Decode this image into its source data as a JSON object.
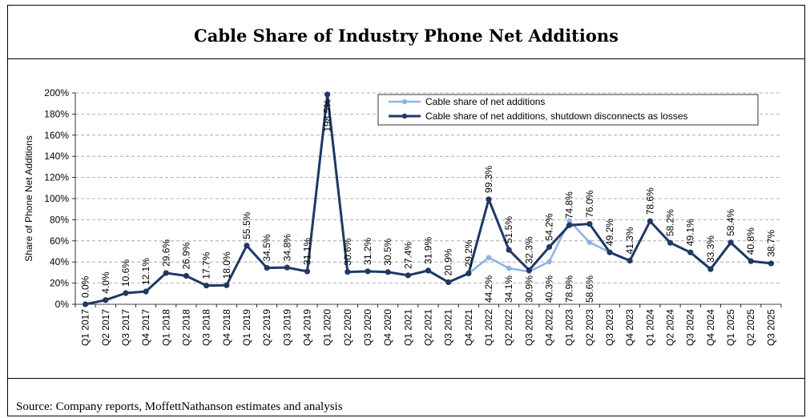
{
  "chart_data": {
    "type": "line",
    "title": "Cable Share of Industry Phone Net Additions",
    "ylabel": "Share of Phone Net Additions",
    "xlabel": "",
    "ylim": [
      0,
      200
    ],
    "yticks": [
      "0%",
      "20%",
      "40%",
      "60%",
      "80%",
      "100%",
      "120%",
      "140%",
      "160%",
      "180%",
      "200%"
    ],
    "grid": "horizontal dashed",
    "legend_position": "top-right",
    "categories": [
      "Q1 2017",
      "Q2 2017",
      "Q3 2017",
      "Q4 2017",
      "Q1 2018",
      "Q2 2018",
      "Q3 2018",
      "Q4 2018",
      "Q1 2019",
      "Q2 2019",
      "Q3 2019",
      "Q4 2019",
      "Q1 2020",
      "Q2 2020",
      "Q3 2020",
      "Q4 2020",
      "Q1 2021",
      "Q2 2021",
      "Q3 2021",
      "Q4 2021",
      "Q1 2022",
      "Q2 2022",
      "Q3 2022",
      "Q4 2022",
      "Q1 2023",
      "Q2 2023",
      "Q3 2023",
      "Q4 2023",
      "Q1 2024",
      "Q2 2024",
      "Q3 2024",
      "Q4 2024",
      "Q1 2025",
      "Q2 2025",
      "Q3 2025"
    ],
    "series": [
      {
        "name": "Cable share of net additions",
        "color": "#8DB3E2",
        "values": [
          0.0,
          4.0,
          10.6,
          12.1,
          29.6,
          26.9,
          17.7,
          18.0,
          55.5,
          34.5,
          34.8,
          31.1,
          198.5,
          30.6,
          31.2,
          30.5,
          27.4,
          31.9,
          20.9,
          29.2,
          44.2,
          34.1,
          30.9,
          40.3,
          78.9,
          58.6,
          49.2,
          41.3,
          78.6,
          58.2,
          49.1,
          33.3,
          58.4,
          40.8,
          38.7
        ],
        "labels": [
          "0.0%",
          "4.0%",
          "10.6%",
          "12.1%",
          "29.6%",
          "26.9%",
          "17.7%",
          "18.0%",
          "55.5%",
          "34.5%",
          "34.8%",
          "31.1%",
          "198.5%",
          "30.6%",
          "31.2%",
          "30.5%",
          "27.4%",
          "31.9%",
          "20.9%",
          "29.2%",
          "44.2%",
          "34.1%",
          "30.9%",
          "40.3%",
          "78.9%",
          "58.6%",
          "49.2%",
          "41.3%",
          "78.6%",
          "58.2%",
          "49.1%",
          "33.3%",
          "58.4%",
          "40.8%",
          "38.7%"
        ]
      },
      {
        "name": "Cable share of net additions, shutdown disconnects as losses",
        "color": "#1F3864",
        "values": [
          0.0,
          4.0,
          10.6,
          12.1,
          29.6,
          26.9,
          17.7,
          18.0,
          55.5,
          34.5,
          34.8,
          31.1,
          198.5,
          30.6,
          31.2,
          30.5,
          27.4,
          31.9,
          20.9,
          29.2,
          99.3,
          51.5,
          32.3,
          54.2,
          74.8,
          76.0,
          49.2,
          41.3,
          78.6,
          58.2,
          49.1,
          33.3,
          58.4,
          40.8,
          38.7
        ],
        "labels": [
          "99.3%",
          "51.5%",
          "32.3%",
          "54.2%",
          "74.8%",
          "76.0%"
        ]
      }
    ],
    "source": "Source: Company reports, MoffettNathanson estimates and analysis"
  }
}
